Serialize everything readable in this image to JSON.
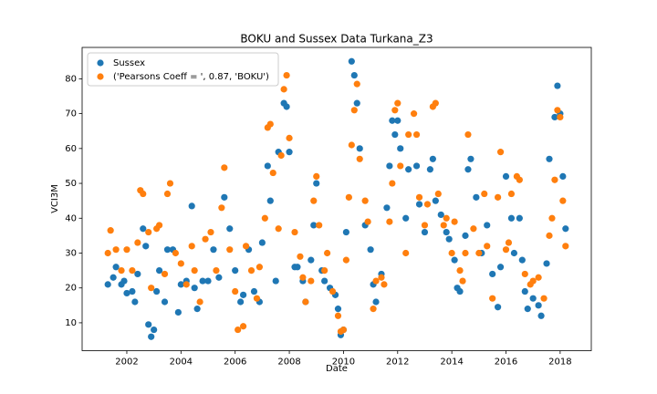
{
  "chart_data": {
    "type": "scatter",
    "title": "BOKU and Sussex Data Turkana_Z3",
    "xlabel": "Date",
    "ylabel": "VCI3M",
    "xlim": [
      2000.35,
      2019.15
    ],
    "xticks": [
      2002,
      2004,
      2006,
      2008,
      2010,
      2012,
      2014,
      2016,
      2018
    ],
    "ylim": [
      2,
      89
    ],
    "yticks": [
      10,
      20,
      30,
      40,
      50,
      60,
      70,
      80
    ],
    "legend": "upper left",
    "series": [
      {
        "name": "Sussex",
        "color": "#1f77b4",
        "x": [
          2001.3,
          2001.5,
          2001.6,
          2001.8,
          2001.9,
          2002.0,
          2002.2,
          2002.3,
          2002.4,
          2002.6,
          2002.7,
          2002.8,
          2002.9,
          2003.0,
          2003.1,
          2003.2,
          2003.4,
          2003.5,
          2003.7,
          2003.9,
          2004.0,
          2004.2,
          2004.4,
          2004.5,
          2004.6,
          2004.8,
          2005.0,
          2005.2,
          2005.4,
          2005.6,
          2005.8,
          2006.0,
          2006.2,
          2006.3,
          2006.5,
          2006.7,
          2006.9,
          2007.0,
          2007.2,
          2007.3,
          2007.5,
          2007.6,
          2007.8,
          2007.9,
          2008.0,
          2008.2,
          2008.3,
          2008.5,
          2008.6,
          2008.8,
          2008.9,
          2009.0,
          2009.2,
          2009.3,
          2009.5,
          2009.7,
          2009.8,
          2009.9,
          2010.0,
          2010.1,
          2010.3,
          2010.4,
          2010.5,
          2010.6,
          2010.8,
          2011.0,
          2011.1,
          2011.2,
          2011.4,
          2011.6,
          2011.7,
          2011.8,
          2011.9,
          2012.0,
          2012.1,
          2012.3,
          2012.4,
          2012.7,
          2012.8,
          2013.0,
          2013.2,
          2013.3,
          2013.4,
          2013.6,
          2013.8,
          2013.9,
          2014.1,
          2014.2,
          2014.3,
          2014.5,
          2014.6,
          2014.7,
          2014.9,
          2015.1,
          2015.3,
          2015.5,
          2015.7,
          2015.8,
          2016.0,
          2016.2,
          2016.3,
          2016.5,
          2016.6,
          2016.7,
          2016.8,
          2017.0,
          2017.2,
          2017.3,
          2017.5,
          2017.6,
          2017.8,
          2017.9,
          2018.0,
          2018.1,
          2018.2
        ],
        "values": [
          21,
          23,
          26,
          21,
          22,
          18.5,
          19,
          16,
          24,
          37,
          32,
          9.5,
          6,
          8,
          19,
          25,
          16,
          31,
          31,
          13,
          21,
          22,
          43.5,
          20,
          14,
          22,
          22,
          31,
          23,
          46,
          37,
          25,
          16,
          18,
          31,
          19,
          16,
          33,
          55,
          45,
          22,
          59,
          73,
          72,
          59,
          26,
          26,
          22,
          16,
          28,
          38,
          50,
          25,
          22,
          20,
          18,
          14,
          6.5,
          8,
          36,
          85,
          81,
          73,
          60,
          38,
          31,
          21,
          16,
          24,
          43,
          55,
          68,
          64,
          68,
          60,
          40,
          54,
          55,
          44,
          36,
          54,
          57,
          45,
          41,
          36,
          34,
          28,
          20,
          19,
          35,
          54,
          57,
          46,
          30,
          38,
          24,
          14.5,
          26,
          52,
          40,
          30,
          40,
          28,
          19,
          14,
          17,
          15,
          12,
          27,
          57,
          69,
          78,
          70,
          52,
          37
        ]
      },
      {
        "name": "('Pearsons Coeff = ', 0.87, 'BOKU')",
        "color": "#ff7f0e",
        "x": [
          2001.3,
          2001.4,
          2001.6,
          2001.8,
          2002.0,
          2002.2,
          2002.4,
          2002.5,
          2002.6,
          2002.8,
          2002.9,
          2003.1,
          2003.2,
          2003.4,
          2003.5,
          2003.6,
          2003.8,
          2004.0,
          2004.2,
          2004.4,
          2004.5,
          2004.7,
          2004.9,
          2005.1,
          2005.3,
          2005.5,
          2005.6,
          2005.8,
          2006.0,
          2006.1,
          2006.3,
          2006.4,
          2006.6,
          2006.8,
          2006.9,
          2007.1,
          2007.2,
          2007.3,
          2007.4,
          2007.6,
          2007.7,
          2007.8,
          2007.9,
          2008.0,
          2008.2,
          2008.4,
          2008.5,
          2008.6,
          2008.8,
          2008.9,
          2009.0,
          2009.1,
          2009.3,
          2009.4,
          2009.6,
          2009.8,
          2009.9,
          2010.0,
          2010.1,
          2010.2,
          2010.3,
          2010.4,
          2010.5,
          2010.6,
          2010.8,
          2010.9,
          2011.1,
          2011.2,
          2011.4,
          2011.5,
          2011.7,
          2011.8,
          2011.9,
          2012.0,
          2012.1,
          2012.3,
          2012.4,
          2012.6,
          2012.7,
          2012.8,
          2013.0,
          2013.1,
          2013.3,
          2013.4,
          2013.5,
          2013.7,
          2013.8,
          2014.0,
          2014.1,
          2014.3,
          2014.4,
          2014.5,
          2014.6,
          2014.8,
          2015.0,
          2015.2,
          2015.3,
          2015.5,
          2015.7,
          2015.8,
          2016.0,
          2016.1,
          2016.2,
          2016.4,
          2016.5,
          2016.7,
          2016.9,
          2017.0,
          2017.2,
          2017.4,
          2017.6,
          2017.7,
          2017.8,
          2017.9,
          2018.0,
          2018.1,
          2018.2
        ],
        "values": [
          30,
          36.5,
          31,
          25,
          31,
          25,
          33,
          48,
          47,
          36,
          20,
          37,
          38,
          24,
          47,
          50,
          30,
          27,
          21,
          32,
          25,
          16,
          34,
          36,
          25,
          43,
          54.5,
          31,
          19,
          8,
          9,
          32,
          25,
          17,
          26,
          40,
          66,
          67,
          53,
          37,
          58,
          77,
          81,
          63,
          36,
          29,
          23,
          16,
          22,
          45,
          52,
          38,
          25,
          30,
          19,
          12,
          7.5,
          8,
          28,
          46,
          61,
          71,
          78.5,
          57,
          45,
          39,
          14,
          22,
          23,
          21,
          39,
          50,
          71,
          73,
          55,
          30,
          64,
          70,
          64,
          46,
          38,
          44,
          72,
          73,
          47,
          38,
          40,
          30,
          39,
          25,
          22,
          30,
          64,
          37,
          30,
          47,
          32,
          17,
          46,
          59,
          31,
          33,
          47,
          52,
          51,
          24,
          21,
          22,
          23,
          17,
          35,
          40,
          51,
          71,
          69,
          45,
          32
        ]
      }
    ]
  }
}
